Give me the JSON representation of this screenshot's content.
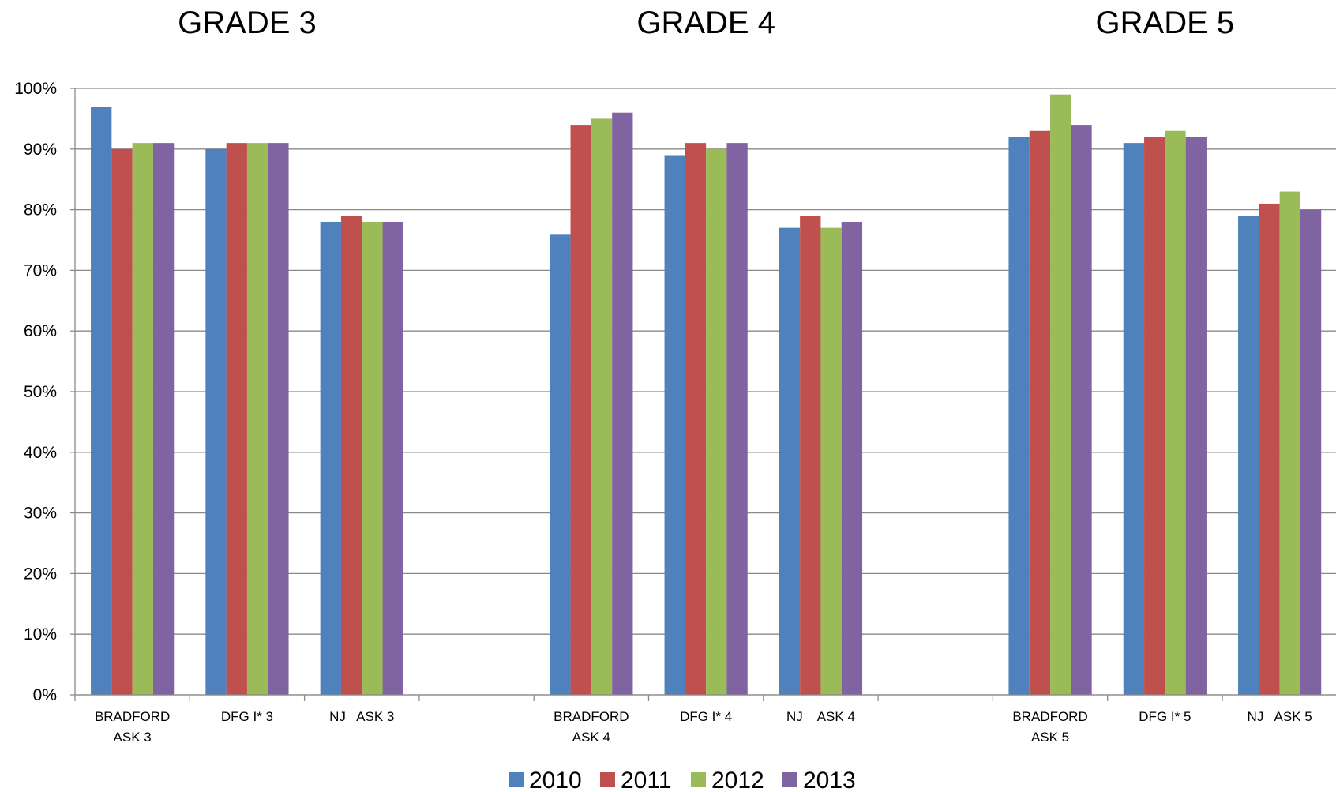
{
  "chart_data": {
    "type": "bar",
    "group_titles": [
      "GRADE 3",
      "GRADE 4",
      "GRADE 5"
    ],
    "categories": [
      [
        "BRADFORD",
        "ASK 3"
      ],
      [
        "DFG I* 3"
      ],
      [
        "NJ   ASK 3"
      ],
      [
        ""
      ],
      [
        "BRADFORD",
        "ASK 4"
      ],
      [
        "DFG I* 4"
      ],
      [
        "NJ    ASK 4"
      ],
      [
        ""
      ],
      [
        "BRADFORD",
        "ASK 5"
      ],
      [
        "DFG I* 5"
      ],
      [
        "NJ   ASK 5"
      ]
    ],
    "series": [
      {
        "name": "2010",
        "color": "#4F81BD",
        "values": [
          97,
          90,
          78,
          null,
          76,
          89,
          77,
          null,
          92,
          91,
          79
        ]
      },
      {
        "name": "2011",
        "color": "#C0504D",
        "values": [
          90,
          91,
          79,
          null,
          94,
          91,
          79,
          null,
          93,
          92,
          81
        ]
      },
      {
        "name": "2012",
        "color": "#9BBB59",
        "values": [
          91,
          91,
          78,
          null,
          95,
          90,
          77,
          null,
          99,
          93,
          83
        ]
      },
      {
        "name": "2013",
        "color": "#8064A2",
        "values": [
          91,
          91,
          78,
          null,
          96,
          91,
          78,
          null,
          94,
          92,
          80
        ]
      }
    ],
    "y_ticks": [
      "0%",
      "10%",
      "20%",
      "30%",
      "40%",
      "50%",
      "60%",
      "70%",
      "80%",
      "90%",
      "100%"
    ],
    "ylim": [
      0,
      100
    ],
    "grid": true,
    "legend_position": "bottom"
  }
}
